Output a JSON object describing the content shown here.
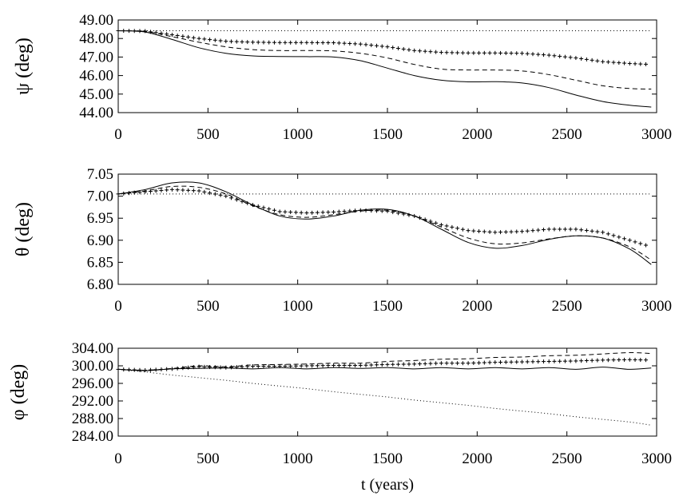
{
  "chart_data": [
    {
      "type": "line",
      "ylabel": "ψ (deg)",
      "xlabel": "",
      "xlim": [
        0,
        3000
      ],
      "ylim": [
        44.0,
        49.0
      ],
      "xticks": [
        "0",
        "500",
        "1000",
        "1500",
        "2000",
        "2500",
        "3000"
      ],
      "yticks": [
        "49.00",
        "48.00",
        "47.00",
        "46.00",
        "45.00",
        "44.00"
      ],
      "x": [
        0,
        150,
        300,
        450,
        600,
        750,
        900,
        1050,
        1200,
        1350,
        1500,
        1650,
        1800,
        1950,
        2100,
        2250,
        2400,
        2550,
        2700,
        2850,
        2970
      ],
      "series": [
        {
          "style": "solid",
          "values": [
            48.42,
            48.35,
            47.95,
            47.5,
            47.2,
            47.06,
            47.03,
            47.02,
            47.0,
            46.8,
            46.4,
            46.0,
            45.75,
            45.66,
            45.67,
            45.6,
            45.35,
            44.95,
            44.6,
            44.4,
            44.3
          ]
        },
        {
          "style": "dashed",
          "values": [
            48.42,
            48.38,
            48.1,
            47.8,
            47.55,
            47.4,
            47.35,
            47.35,
            47.33,
            47.2,
            46.95,
            46.6,
            46.35,
            46.3,
            46.3,
            46.25,
            46.05,
            45.75,
            45.45,
            45.3,
            45.27
          ]
        },
        {
          "style": "plus",
          "values": [
            48.42,
            48.4,
            48.2,
            48.0,
            47.85,
            47.8,
            47.78,
            47.78,
            47.77,
            47.7,
            47.55,
            47.35,
            47.25,
            47.22,
            47.22,
            47.2,
            47.1,
            46.95,
            46.75,
            46.65,
            46.6
          ]
        },
        {
          "style": "dotted",
          "values": [
            48.42,
            48.42,
            48.42,
            48.42,
            48.42,
            48.42,
            48.42,
            48.42,
            48.42,
            48.42,
            48.42,
            48.42,
            48.42,
            48.42,
            48.42,
            48.42,
            48.42,
            48.42,
            48.42,
            48.42,
            48.42
          ]
        }
      ]
    },
    {
      "type": "line",
      "ylabel": "θ (deg)",
      "xlabel": "",
      "xlim": [
        0,
        3000
      ],
      "ylim": [
        6.8,
        7.05
      ],
      "xticks": [
        "0",
        "500",
        "1000",
        "1500",
        "2000",
        "2500",
        "3000"
      ],
      "yticks": [
        "7.05",
        "7.00",
        "6.95",
        "6.90",
        "6.85",
        "6.80"
      ],
      "x": [
        0,
        150,
        300,
        450,
        600,
        750,
        900,
        1050,
        1200,
        1350,
        1500,
        1650,
        1800,
        1950,
        2100,
        2250,
        2400,
        2550,
        2700,
        2850,
        2970
      ],
      "series": [
        {
          "style": "solid",
          "values": [
            7.005,
            7.015,
            7.03,
            7.03,
            7.01,
            6.98,
            6.955,
            6.948,
            6.955,
            6.968,
            6.97,
            6.955,
            6.925,
            6.895,
            6.882,
            6.888,
            6.902,
            6.91,
            6.905,
            6.88,
            6.845
          ]
        },
        {
          "style": "dashed",
          "values": [
            7.005,
            7.012,
            7.022,
            7.02,
            7.005,
            6.978,
            6.958,
            6.952,
            6.958,
            6.966,
            6.968,
            6.955,
            6.93,
            6.905,
            6.892,
            6.894,
            6.903,
            6.91,
            6.905,
            6.885,
            6.855
          ]
        },
        {
          "style": "plus",
          "values": [
            7.005,
            7.01,
            7.015,
            7.012,
            7.0,
            6.98,
            6.965,
            6.962,
            6.964,
            6.968,
            6.966,
            6.955,
            6.935,
            6.922,
            6.918,
            6.92,
            6.925,
            6.925,
            6.918,
            6.9,
            6.885
          ]
        },
        {
          "style": "dotted",
          "values": [
            7.005,
            7.005,
            7.005,
            7.005,
            7.005,
            7.005,
            7.005,
            7.005,
            7.005,
            7.005,
            7.005,
            7.005,
            7.005,
            7.005,
            7.005,
            7.005,
            7.005,
            7.005,
            7.005,
            7.005,
            7.005
          ]
        }
      ]
    },
    {
      "type": "line",
      "ylabel": "φ (deg)",
      "xlabel": "t (years)",
      "xlim": [
        0,
        3000
      ],
      "ylim": [
        284.0,
        304.0
      ],
      "xticks": [
        "0",
        "500",
        "1000",
        "1500",
        "2000",
        "2500",
        "3000"
      ],
      "yticks": [
        "304.00",
        "300.00",
        "296.00",
        "292.00",
        "288.00",
        "284.00"
      ],
      "x": [
        0,
        150,
        300,
        450,
        600,
        750,
        900,
        1050,
        1200,
        1350,
        1500,
        1650,
        1800,
        1950,
        2100,
        2250,
        2400,
        2550,
        2700,
        2850,
        2970
      ],
      "series": [
        {
          "style": "solid",
          "values": [
            299.2,
            298.9,
            299.3,
            299.4,
            299.5,
            299.3,
            299.6,
            299.3,
            299.6,
            299.4,
            299.6,
            299.3,
            299.6,
            299.3,
            299.6,
            299.3,
            299.6,
            299.2,
            299.7,
            299.2,
            299.5
          ]
        },
        {
          "style": "dashed",
          "values": [
            299.2,
            299.0,
            299.4,
            300.0,
            299.8,
            300.2,
            300.3,
            300.4,
            300.6,
            300.6,
            301.0,
            301.2,
            301.5,
            301.6,
            301.9,
            302.0,
            302.3,
            302.4,
            302.7,
            303.0,
            302.8
          ]
        },
        {
          "style": "plus",
          "values": [
            299.2,
            299.0,
            299.3,
            299.8,
            299.6,
            299.9,
            299.9,
            300.0,
            300.1,
            300.1,
            300.3,
            300.4,
            300.6,
            300.6,
            300.8,
            300.9,
            301.0,
            301.1,
            301.3,
            301.4,
            301.3
          ]
        },
        {
          "style": "dotted",
          "values": [
            299.2,
            298.6,
            297.9,
            297.3,
            296.7,
            296.0,
            295.4,
            294.8,
            294.1,
            293.5,
            292.9,
            292.2,
            291.6,
            291.0,
            290.3,
            289.7,
            289.1,
            288.4,
            287.8,
            287.2,
            286.5
          ]
        }
      ]
    }
  ]
}
